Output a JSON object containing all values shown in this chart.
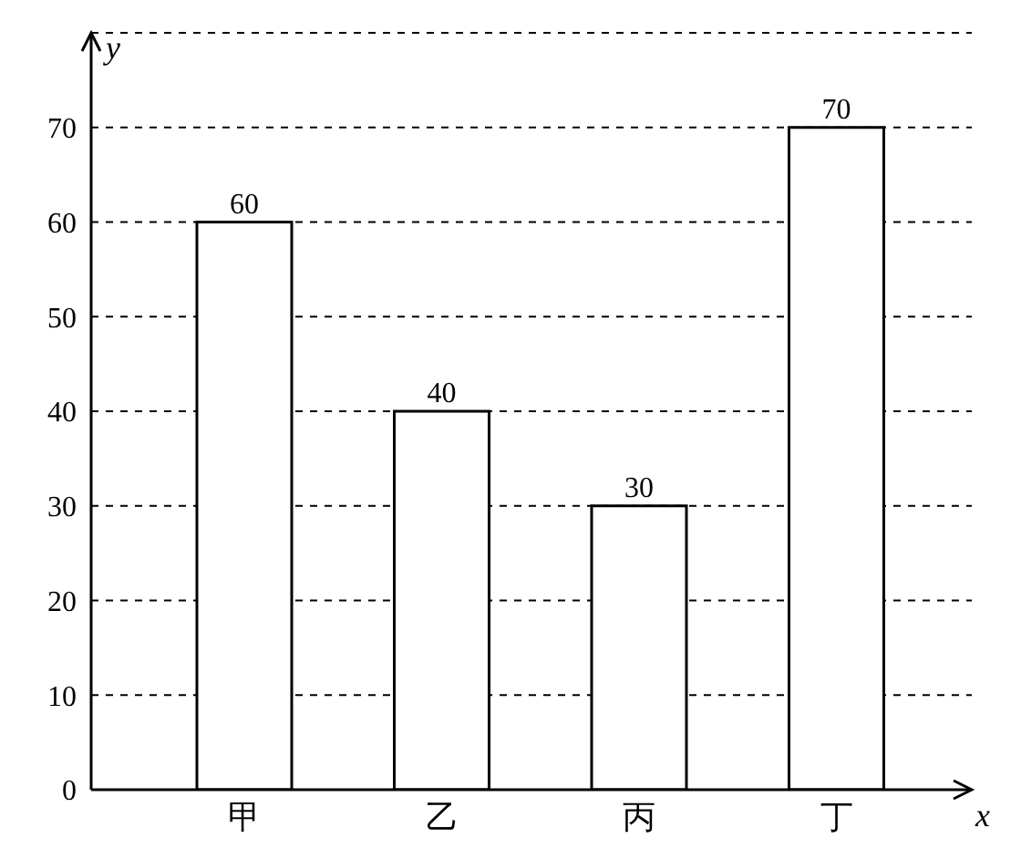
{
  "chart_data": {
    "type": "bar",
    "xlabel": "x",
    "ylabel": "y",
    "categories": [
      "甲",
      "乙",
      "丙",
      "丁"
    ],
    "values": [
      60,
      40,
      30,
      70
    ],
    "color": "#ffffff",
    "ylim": [
      0,
      80
    ],
    "yticks": [
      0,
      10,
      20,
      30,
      40,
      50,
      60,
      70
    ],
    "grid": "y",
    "legend": false,
    "data_labels": true
  }
}
